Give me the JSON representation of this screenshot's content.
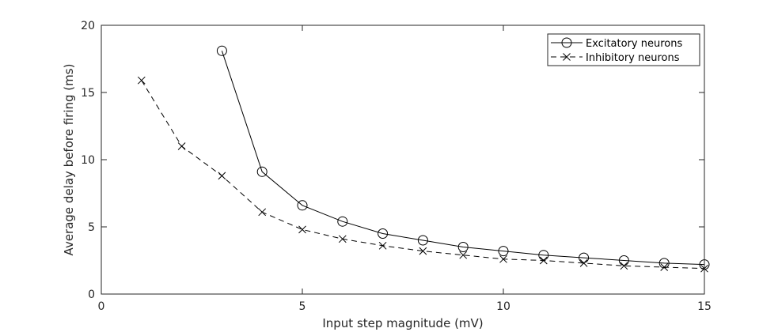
{
  "chart_data": {
    "type": "line",
    "title": "",
    "xlabel": "Input step magnitude (mV)",
    "ylabel": "Average delay before firing (ms)",
    "xlim": [
      0,
      15
    ],
    "ylim": [
      0,
      20
    ],
    "xticks": [
      "0",
      "5",
      "10",
      "15"
    ],
    "yticks": [
      "0",
      "5",
      "10",
      "15",
      "20"
    ],
    "grid": false,
    "legend_position": "top-right",
    "series": [
      {
        "name": "Excitatory neurons",
        "line_style": "solid",
        "marker": "circle",
        "color": "#000000",
        "x": [
          3,
          4,
          5,
          6,
          7,
          8,
          9,
          10,
          11,
          12,
          13,
          14,
          15
        ],
        "y": [
          18.1,
          9.1,
          6.6,
          5.4,
          4.5,
          4.0,
          3.5,
          3.2,
          2.9,
          2.7,
          2.5,
          2.3,
          2.2
        ]
      },
      {
        "name": "Inhibitory neurons",
        "line_style": "dashed",
        "marker": "x",
        "color": "#000000",
        "x": [
          1,
          2,
          3,
          4,
          5,
          6,
          7,
          8,
          9,
          10,
          11,
          12,
          13,
          14,
          15
        ],
        "y": [
          15.9,
          11.0,
          8.8,
          6.1,
          4.8,
          4.1,
          3.6,
          3.2,
          2.9,
          2.6,
          2.5,
          2.3,
          2.1,
          2.0,
          1.9
        ]
      }
    ]
  }
}
